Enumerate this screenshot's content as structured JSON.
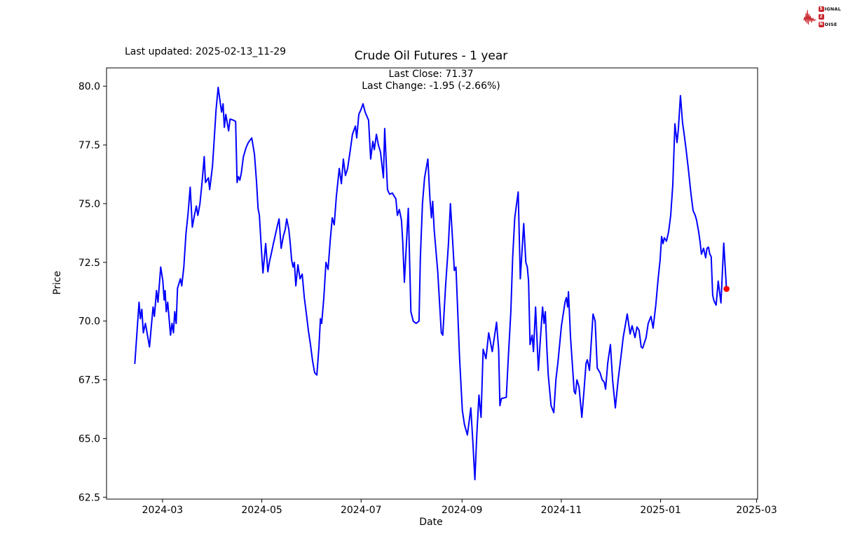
{
  "header": {
    "last_updated": "Last updated: 2025-02-13_11-29",
    "title": "Crude Oil Futures - 1 year",
    "annotation_line1": "Last Close: 71.37",
    "annotation_line2": "Last Change: -1.95 (-2.66%)"
  },
  "logo": {
    "word1_initial": "S",
    "word1_rest": "IGNAL",
    "word2_initial": "2",
    "word3_initial": "N",
    "word3_rest": "OISE",
    "color": "#c9252d"
  },
  "chart_data": {
    "type": "line",
    "title": "Crude Oil Futures - 1 year",
    "xlabel": "Date",
    "ylabel": "Price",
    "grid": false,
    "line_color": "#0000ff",
    "marker_color": "#ff0000",
    "last_close": 71.37,
    "last_change": -1.95,
    "last_change_pct": -2.66,
    "x_axis": {
      "unit": "days_since_start",
      "start_date": "2024-02-13",
      "range": [
        -17.4,
        382.6
      ],
      "tick_days": [
        17,
        78,
        139,
        201,
        262,
        323,
        382
      ],
      "tick_labels": [
        "2024-03",
        "2024-05",
        "2024-07",
        "2024-09",
        "2024-11",
        "2025-01",
        "2025-03"
      ]
    },
    "y_axis": {
      "range": [
        62.42,
        80.78
      ],
      "tick_values": [
        62.5,
        65.0,
        67.5,
        70.0,
        72.5,
        75.0,
        77.5,
        80.0
      ],
      "tick_labels": [
        "62.5",
        "65.0",
        "67.5",
        "70.0",
        "72.5",
        "75.0",
        "77.5",
        "80.0"
      ]
    },
    "series": [
      {
        "name": "Crude Oil Futures close",
        "color": "#0000ff",
        "points": [
          [
            0,
            68.2
          ],
          [
            2.6,
            70.8
          ],
          [
            3.4,
            70.1
          ],
          [
            4.3,
            70.5
          ],
          [
            5.2,
            69.5
          ],
          [
            6.5,
            69.9
          ],
          [
            9,
            68.9
          ],
          [
            10.3,
            69.9
          ],
          [
            11.2,
            70.6
          ],
          [
            12,
            70.2
          ],
          [
            13.3,
            71.3
          ],
          [
            14.2,
            70.8
          ],
          [
            15.9,
            72.3
          ],
          [
            17.2,
            71.7
          ],
          [
            18,
            70.9
          ],
          [
            18.6,
            71.3
          ],
          [
            19.3,
            70.4
          ],
          [
            20.2,
            70.8
          ],
          [
            21.9,
            69.4
          ],
          [
            22.8,
            69.9
          ],
          [
            23.7,
            69.5
          ],
          [
            24.5,
            70.4
          ],
          [
            25.4,
            69.9
          ],
          [
            26.2,
            71.4
          ],
          [
            28,
            71.8
          ],
          [
            28.8,
            71.5
          ],
          [
            30.1,
            72.3
          ],
          [
            31.4,
            73.7
          ],
          [
            32.7,
            74.6
          ],
          [
            34,
            75.7
          ],
          [
            35.3,
            74.0
          ],
          [
            36.6,
            74.5
          ],
          [
            37.8,
            74.9
          ],
          [
            38.7,
            74.5
          ],
          [
            40,
            75.0
          ],
          [
            41.3,
            75.9
          ],
          [
            42.6,
            77.0
          ],
          [
            43.4,
            75.9
          ],
          [
            45.2,
            76.1
          ],
          [
            46,
            75.6
          ],
          [
            47.7,
            76.6
          ],
          [
            49,
            78.0
          ],
          [
            49.9,
            79.0
          ],
          [
            51.2,
            79.95
          ],
          [
            52.5,
            79.3
          ],
          [
            53.3,
            78.9
          ],
          [
            54.2,
            79.25
          ],
          [
            55,
            78.25
          ],
          [
            55.9,
            78.8
          ],
          [
            57.6,
            78.1
          ],
          [
            58.5,
            78.6
          ],
          [
            60.6,
            78.55
          ],
          [
            61.9,
            78.5
          ],
          [
            62.8,
            75.9
          ],
          [
            63.6,
            76.15
          ],
          [
            64.5,
            76.0
          ],
          [
            65.4,
            76.3
          ],
          [
            66.7,
            77.0
          ],
          [
            68.4,
            77.4
          ],
          [
            69.7,
            77.6
          ],
          [
            71.8,
            77.8
          ],
          [
            73.5,
            77.1
          ],
          [
            74.8,
            75.9
          ],
          [
            75.7,
            74.8
          ],
          [
            76.5,
            74.5
          ],
          [
            77.8,
            73.0
          ],
          [
            78.7,
            72.05
          ],
          [
            80.4,
            73.3
          ],
          [
            81.7,
            72.1
          ],
          [
            82.6,
            72.5
          ],
          [
            83.9,
            72.9
          ],
          [
            85.1,
            73.3
          ],
          [
            86.4,
            73.7
          ],
          [
            87.7,
            74.1
          ],
          [
            88.6,
            74.35
          ],
          [
            89.9,
            73.1
          ],
          [
            91.2,
            73.6
          ],
          [
            92.4,
            73.9
          ],
          [
            93.3,
            74.35
          ],
          [
            94.6,
            73.9
          ],
          [
            95.5,
            73.3
          ],
          [
            96.3,
            72.6
          ],
          [
            97.2,
            72.3
          ],
          [
            98,
            72.5
          ],
          [
            98.9,
            71.5
          ],
          [
            100.2,
            72.4
          ],
          [
            101.5,
            71.8
          ],
          [
            102.8,
            72.0
          ],
          [
            104.1,
            71.0
          ],
          [
            105.4,
            70.3
          ],
          [
            106.6,
            69.6
          ],
          [
            107.9,
            69.0
          ],
          [
            109.2,
            68.3
          ],
          [
            110.5,
            67.8
          ],
          [
            111.8,
            67.7
          ],
          [
            113.1,
            68.9
          ],
          [
            114,
            70.1
          ],
          [
            114.8,
            69.9
          ],
          [
            116.1,
            71.0
          ],
          [
            117.4,
            72.5
          ],
          [
            118.7,
            72.2
          ],
          [
            120,
            73.4
          ],
          [
            121.3,
            74.4
          ],
          [
            122.5,
            74.1
          ],
          [
            123.8,
            75.3
          ],
          [
            125.6,
            76.5
          ],
          [
            126.9,
            75.85
          ],
          [
            128.1,
            76.9
          ],
          [
            129.4,
            76.2
          ],
          [
            130.7,
            76.5
          ],
          [
            132.4,
            77.3
          ],
          [
            133.7,
            77.95
          ],
          [
            135.5,
            78.3
          ],
          [
            136.3,
            77.8
          ],
          [
            137.6,
            78.8
          ],
          [
            138.9,
            79.0
          ],
          [
            140.2,
            79.25
          ],
          [
            141.5,
            78.9
          ],
          [
            143.6,
            78.55
          ],
          [
            144.9,
            76.9
          ],
          [
            146.2,
            77.65
          ],
          [
            147.1,
            77.3
          ],
          [
            148.4,
            77.95
          ],
          [
            149.6,
            77.5
          ],
          [
            150.9,
            77.2
          ],
          [
            152.7,
            76.1
          ],
          [
            153.5,
            78.2
          ],
          [
            155.2,
            75.6
          ],
          [
            156.5,
            75.4
          ],
          [
            158.2,
            75.45
          ],
          [
            160.4,
            75.2
          ],
          [
            161.3,
            74.5
          ],
          [
            162.5,
            74.75
          ],
          [
            163.8,
            74.3
          ],
          [
            164.6,
            73.35
          ],
          [
            165.6,
            71.65
          ],
          [
            168,
            74.8
          ],
          [
            169.6,
            70.4
          ],
          [
            171,
            70.0
          ],
          [
            172.8,
            69.9
          ],
          [
            174.6,
            70.0
          ],
          [
            175.4,
            72.7
          ],
          [
            176.7,
            75.0
          ],
          [
            178,
            76.1
          ],
          [
            180,
            76.9
          ],
          [
            181.3,
            75.2
          ],
          [
            182.2,
            74.4
          ],
          [
            183,
            75.1
          ],
          [
            183.9,
            73.9
          ],
          [
            186.1,
            72.1
          ],
          [
            188.3,
            69.5
          ],
          [
            189.2,
            69.4
          ],
          [
            190.9,
            71.5
          ],
          [
            192.6,
            73.2
          ],
          [
            193.9,
            75.0
          ],
          [
            195.2,
            73.45
          ],
          [
            196.3,
            72.15
          ],
          [
            197.3,
            72.3
          ],
          [
            199.5,
            68.4
          ],
          [
            201.2,
            66.2
          ],
          [
            202.5,
            65.6
          ],
          [
            204.3,
            65.15
          ],
          [
            205.5,
            65.8
          ],
          [
            206.4,
            66.3
          ],
          [
            207.7,
            64.8
          ],
          [
            208.9,
            63.25
          ],
          [
            210.1,
            65.2
          ],
          [
            211.4,
            66.85
          ],
          [
            212.7,
            65.9
          ],
          [
            214,
            68.8
          ],
          [
            215.7,
            68.4
          ],
          [
            217.4,
            69.5
          ],
          [
            219.6,
            68.7
          ],
          [
            222.2,
            69.95
          ],
          [
            223.5,
            68.8
          ],
          [
            224.3,
            66.4
          ],
          [
            225.2,
            66.7
          ],
          [
            228.2,
            66.75
          ],
          [
            229.5,
            68.5
          ],
          [
            231,
            70.4
          ],
          [
            232.1,
            72.7
          ],
          [
            233.4,
            74.4
          ],
          [
            235.5,
            75.5
          ],
          [
            236.8,
            71.8
          ],
          [
            238.9,
            74.15
          ],
          [
            240.2,
            72.5
          ],
          [
            241.1,
            72.3
          ],
          [
            241.9,
            71.7
          ],
          [
            242.8,
            69.0
          ],
          [
            244.1,
            69.4
          ],
          [
            244.9,
            68.7
          ],
          [
            246.2,
            70.6
          ],
          [
            247.9,
            67.9
          ],
          [
            249.2,
            69.3
          ],
          [
            250.5,
            70.6
          ],
          [
            251.4,
            69.9
          ],
          [
            252.2,
            70.4
          ],
          [
            253.1,
            68.9
          ],
          [
            254,
            67.7
          ],
          [
            255.7,
            66.4
          ],
          [
            257.4,
            66.1
          ],
          [
            258.7,
            67.5
          ],
          [
            260,
            68.3
          ],
          [
            262.1,
            69.8
          ],
          [
            264.3,
            70.8
          ],
          [
            265.1,
            71.0
          ],
          [
            265.9,
            70.6
          ],
          [
            266.4,
            71.25
          ],
          [
            267.7,
            69.3
          ],
          [
            269.9,
            67.0
          ],
          [
            270.7,
            66.9
          ],
          [
            271.6,
            67.5
          ],
          [
            272.9,
            67.2
          ],
          [
            274.6,
            65.9
          ],
          [
            275.9,
            67.0
          ],
          [
            277.2,
            68.2
          ],
          [
            278,
            68.35
          ],
          [
            279.3,
            67.9
          ],
          [
            281.5,
            70.3
          ],
          [
            282.8,
            70.0
          ],
          [
            284.1,
            68.0
          ],
          [
            285.8,
            67.8
          ],
          [
            287.1,
            67.5
          ],
          [
            288.4,
            67.4
          ],
          [
            289.2,
            67.1
          ],
          [
            290.5,
            68.2
          ],
          [
            292.2,
            69.0
          ],
          [
            293.5,
            67.5
          ],
          [
            295.2,
            66.3
          ],
          [
            296.9,
            67.5
          ],
          [
            298.7,
            68.5
          ],
          [
            300,
            69.3
          ],
          [
            302.5,
            70.3
          ],
          [
            304.3,
            69.45
          ],
          [
            305.5,
            69.8
          ],
          [
            307.3,
            69.3
          ],
          [
            308.5,
            69.75
          ],
          [
            309.8,
            69.6
          ],
          [
            311.1,
            68.9
          ],
          [
            312,
            68.85
          ],
          [
            314.1,
            69.3
          ],
          [
            315.4,
            69.9
          ],
          [
            317.1,
            70.2
          ],
          [
            318.4,
            69.7
          ],
          [
            320.1,
            70.7
          ],
          [
            321.4,
            71.75
          ],
          [
            322.7,
            72.6
          ],
          [
            323.6,
            73.6
          ],
          [
            324.5,
            73.3
          ],
          [
            325.3,
            73.55
          ],
          [
            326.6,
            73.4
          ],
          [
            327.9,
            73.8
          ],
          [
            329.2,
            74.5
          ],
          [
            330.5,
            75.8
          ],
          [
            331.8,
            78.4
          ],
          [
            333.1,
            77.6
          ],
          [
            333.9,
            78.15
          ],
          [
            335.2,
            79.6
          ],
          [
            336.5,
            78.45
          ],
          [
            337.4,
            78.0
          ],
          [
            338.7,
            77.3
          ],
          [
            340,
            76.5
          ],
          [
            341.7,
            75.4
          ],
          [
            343,
            74.7
          ],
          [
            344.3,
            74.5
          ],
          [
            345.1,
            74.3
          ],
          [
            346.4,
            73.8
          ],
          [
            347.2,
            73.4
          ],
          [
            348.1,
            72.85
          ],
          [
            349.4,
            73.1
          ],
          [
            350.7,
            72.7
          ],
          [
            351.5,
            73.1
          ],
          [
            352.4,
            73.15
          ],
          [
            353.2,
            72.86
          ],
          [
            354.1,
            72.74
          ],
          [
            355,
            71.1
          ],
          [
            355.8,
            70.86
          ],
          [
            357.1,
            70.68
          ],
          [
            358.4,
            71.7
          ],
          [
            360.1,
            70.77
          ],
          [
            361.8,
            73.32
          ],
          [
            363.5,
            71.37
          ]
        ]
      }
    ],
    "last_point": {
      "day": 363.5,
      "price": 71.37
    }
  }
}
